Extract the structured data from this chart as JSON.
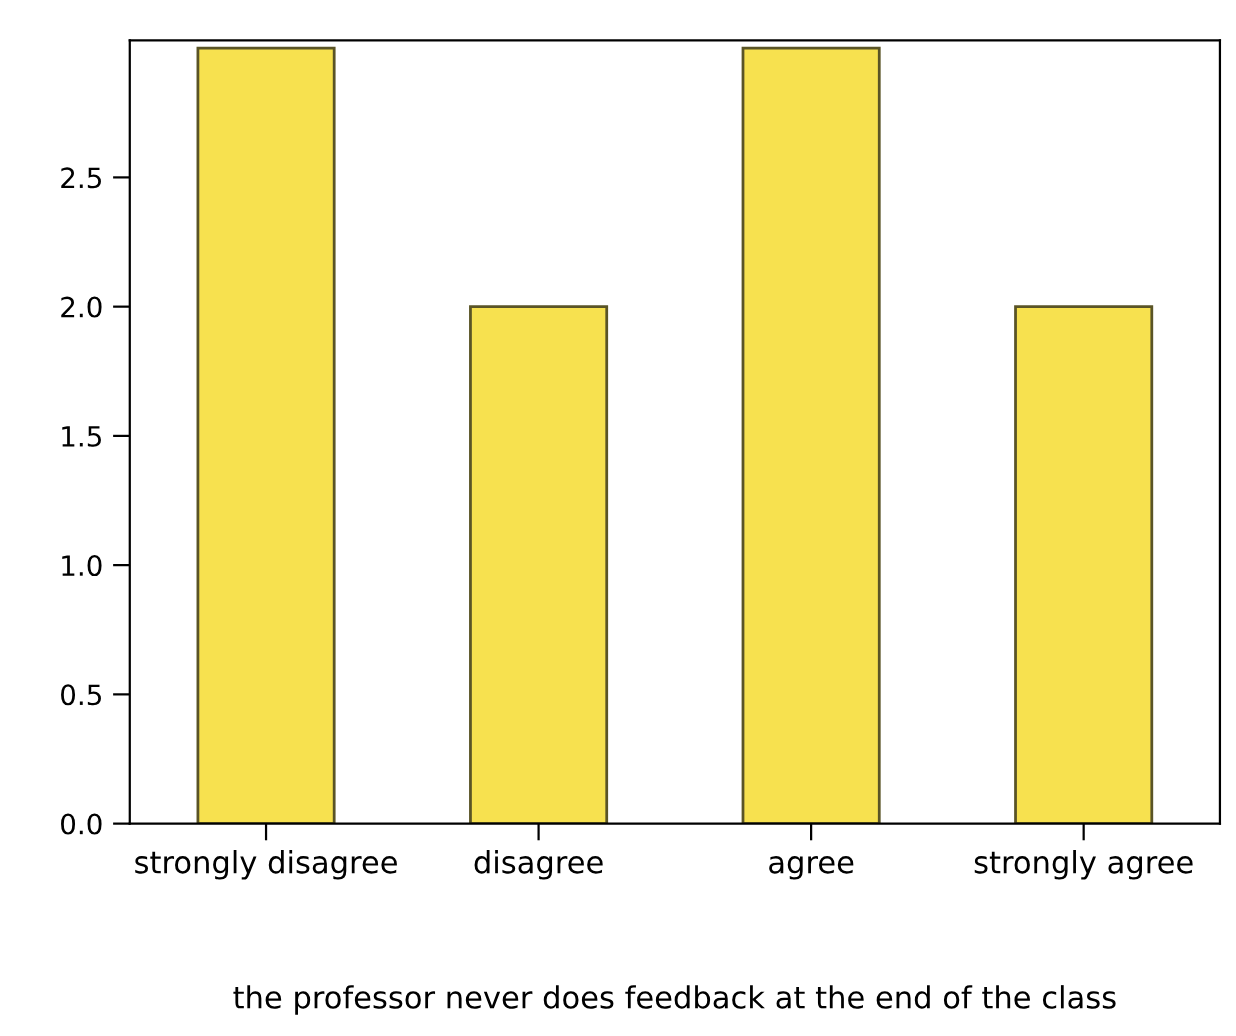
{
  "chart_data": {
    "type": "bar",
    "xlabel": "the professor never does feedback at the end of the class",
    "categories": [
      "strongly disagree",
      "disagree",
      "agree",
      "strongly agree"
    ],
    "values": [
      3,
      2,
      3,
      2
    ],
    "color": "#f7e14f",
    "ylim": [
      0,
      3.03
    ],
    "yticks": [
      {
        "value": 0,
        "label": "0.0"
      },
      {
        "value": 0.5,
        "label": "0.5"
      },
      {
        "value": 1,
        "label": "1.0"
      },
      {
        "value": 1.5,
        "label": "1.5"
      },
      {
        "value": 2,
        "label": "2.0"
      },
      {
        "value": 2.5,
        "label": "2.5"
      }
    ],
    "grid": false
  }
}
